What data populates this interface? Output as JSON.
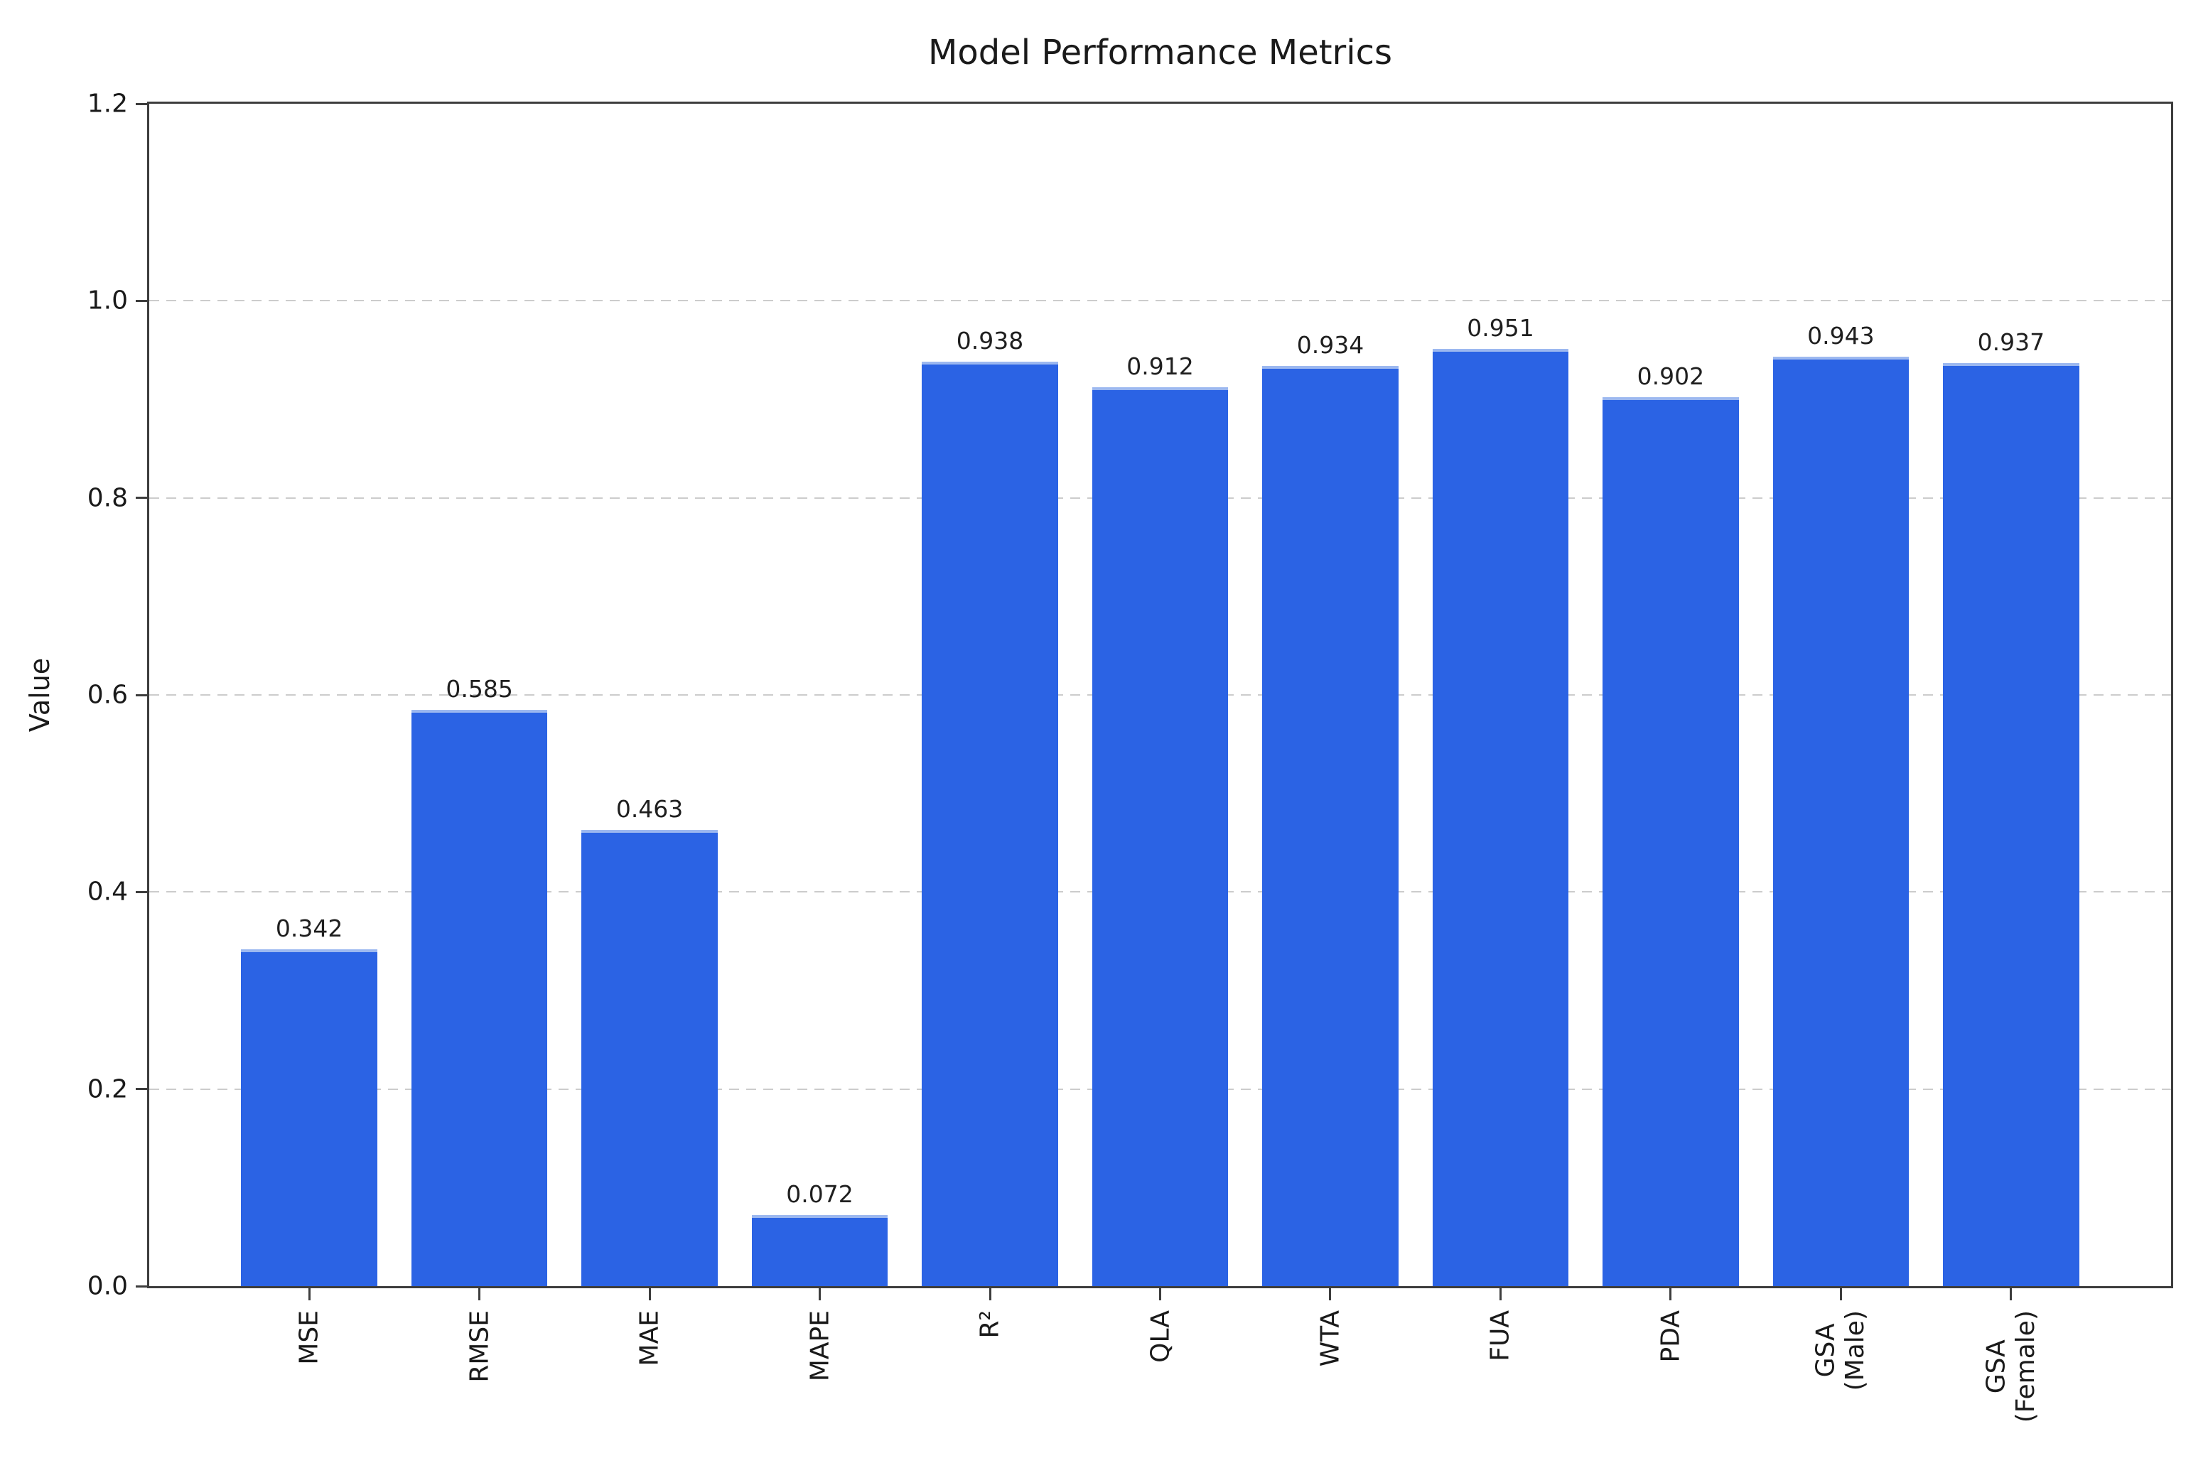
{
  "chart_data": {
    "type": "bar",
    "title": "Model Performance Metrics",
    "ylabel": "Value",
    "xlabel": "",
    "categories": [
      "MSE",
      "RMSE",
      "MAE",
      "MAPE",
      "R²",
      "QLA",
      "WTA",
      "FUA",
      "PDA",
      "GSA\n(Male)",
      "GSA\n(Female)"
    ],
    "values": [
      0.342,
      0.585,
      0.463,
      0.072,
      0.938,
      0.912,
      0.934,
      0.951,
      0.902,
      0.943,
      0.937
    ],
    "value_labels": [
      "0.342",
      "0.585",
      "0.463",
      "0.072",
      "0.938",
      "0.912",
      "0.934",
      "0.951",
      "0.902",
      "0.943",
      "0.937"
    ],
    "ylim": [
      0,
      1.2
    ],
    "yticks": [
      "0.0",
      "0.2",
      "0.4",
      "0.6",
      "0.8",
      "1.0",
      "1.2"
    ],
    "x_range": [
      -0.94,
      10.94
    ],
    "bar_width_units": 0.8,
    "grid": {
      "axis": "y",
      "style": "dashed",
      "color": "#cccccc"
    },
    "legend": "none",
    "colors": {
      "bar": "#2b63e4",
      "bar_top_edge": "#9cb8f0",
      "spine": "#3d3d3d",
      "gridline": "#cccccc",
      "text": "#1a1a1a",
      "background": "#ffffff"
    }
  }
}
